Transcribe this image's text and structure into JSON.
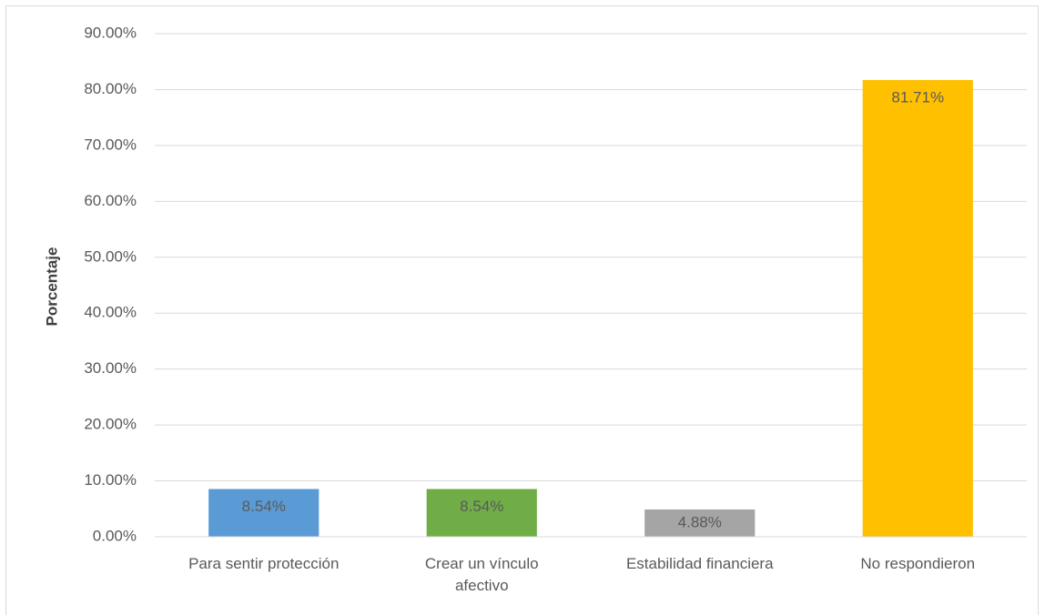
{
  "chart_data": {
    "type": "bar",
    "y_label": "Porcentaje",
    "categories": [
      "Para sentir protección",
      "Crear un vínculo afectivo",
      "Estabilidad financiera",
      "No respondieron"
    ],
    "values": [
      8.54,
      8.54,
      4.88,
      81.71
    ],
    "value_labels": [
      "8.54%",
      "8.54%",
      "4.88%",
      "81.71%"
    ],
    "colors": [
      "#5b9bd5",
      "#70ad47",
      "#a5a5a5",
      "#ffc000"
    ],
    "ylim": [
      0,
      90
    ],
    "yticks": [
      {
        "value": 0,
        "label": "0.00%"
      },
      {
        "value": 10,
        "label": "10.00%"
      },
      {
        "value": 20,
        "label": "20.00%"
      },
      {
        "value": 30,
        "label": "30.00%"
      },
      {
        "value": 40,
        "label": "40.00%"
      },
      {
        "value": 50,
        "label": "50.00%"
      },
      {
        "value": 60,
        "label": "60.00%"
      },
      {
        "value": 70,
        "label": "70.00%"
      },
      {
        "value": 80,
        "label": "80.00%"
      },
      {
        "value": 90,
        "label": "90.00%"
      }
    ],
    "grid": true
  }
}
